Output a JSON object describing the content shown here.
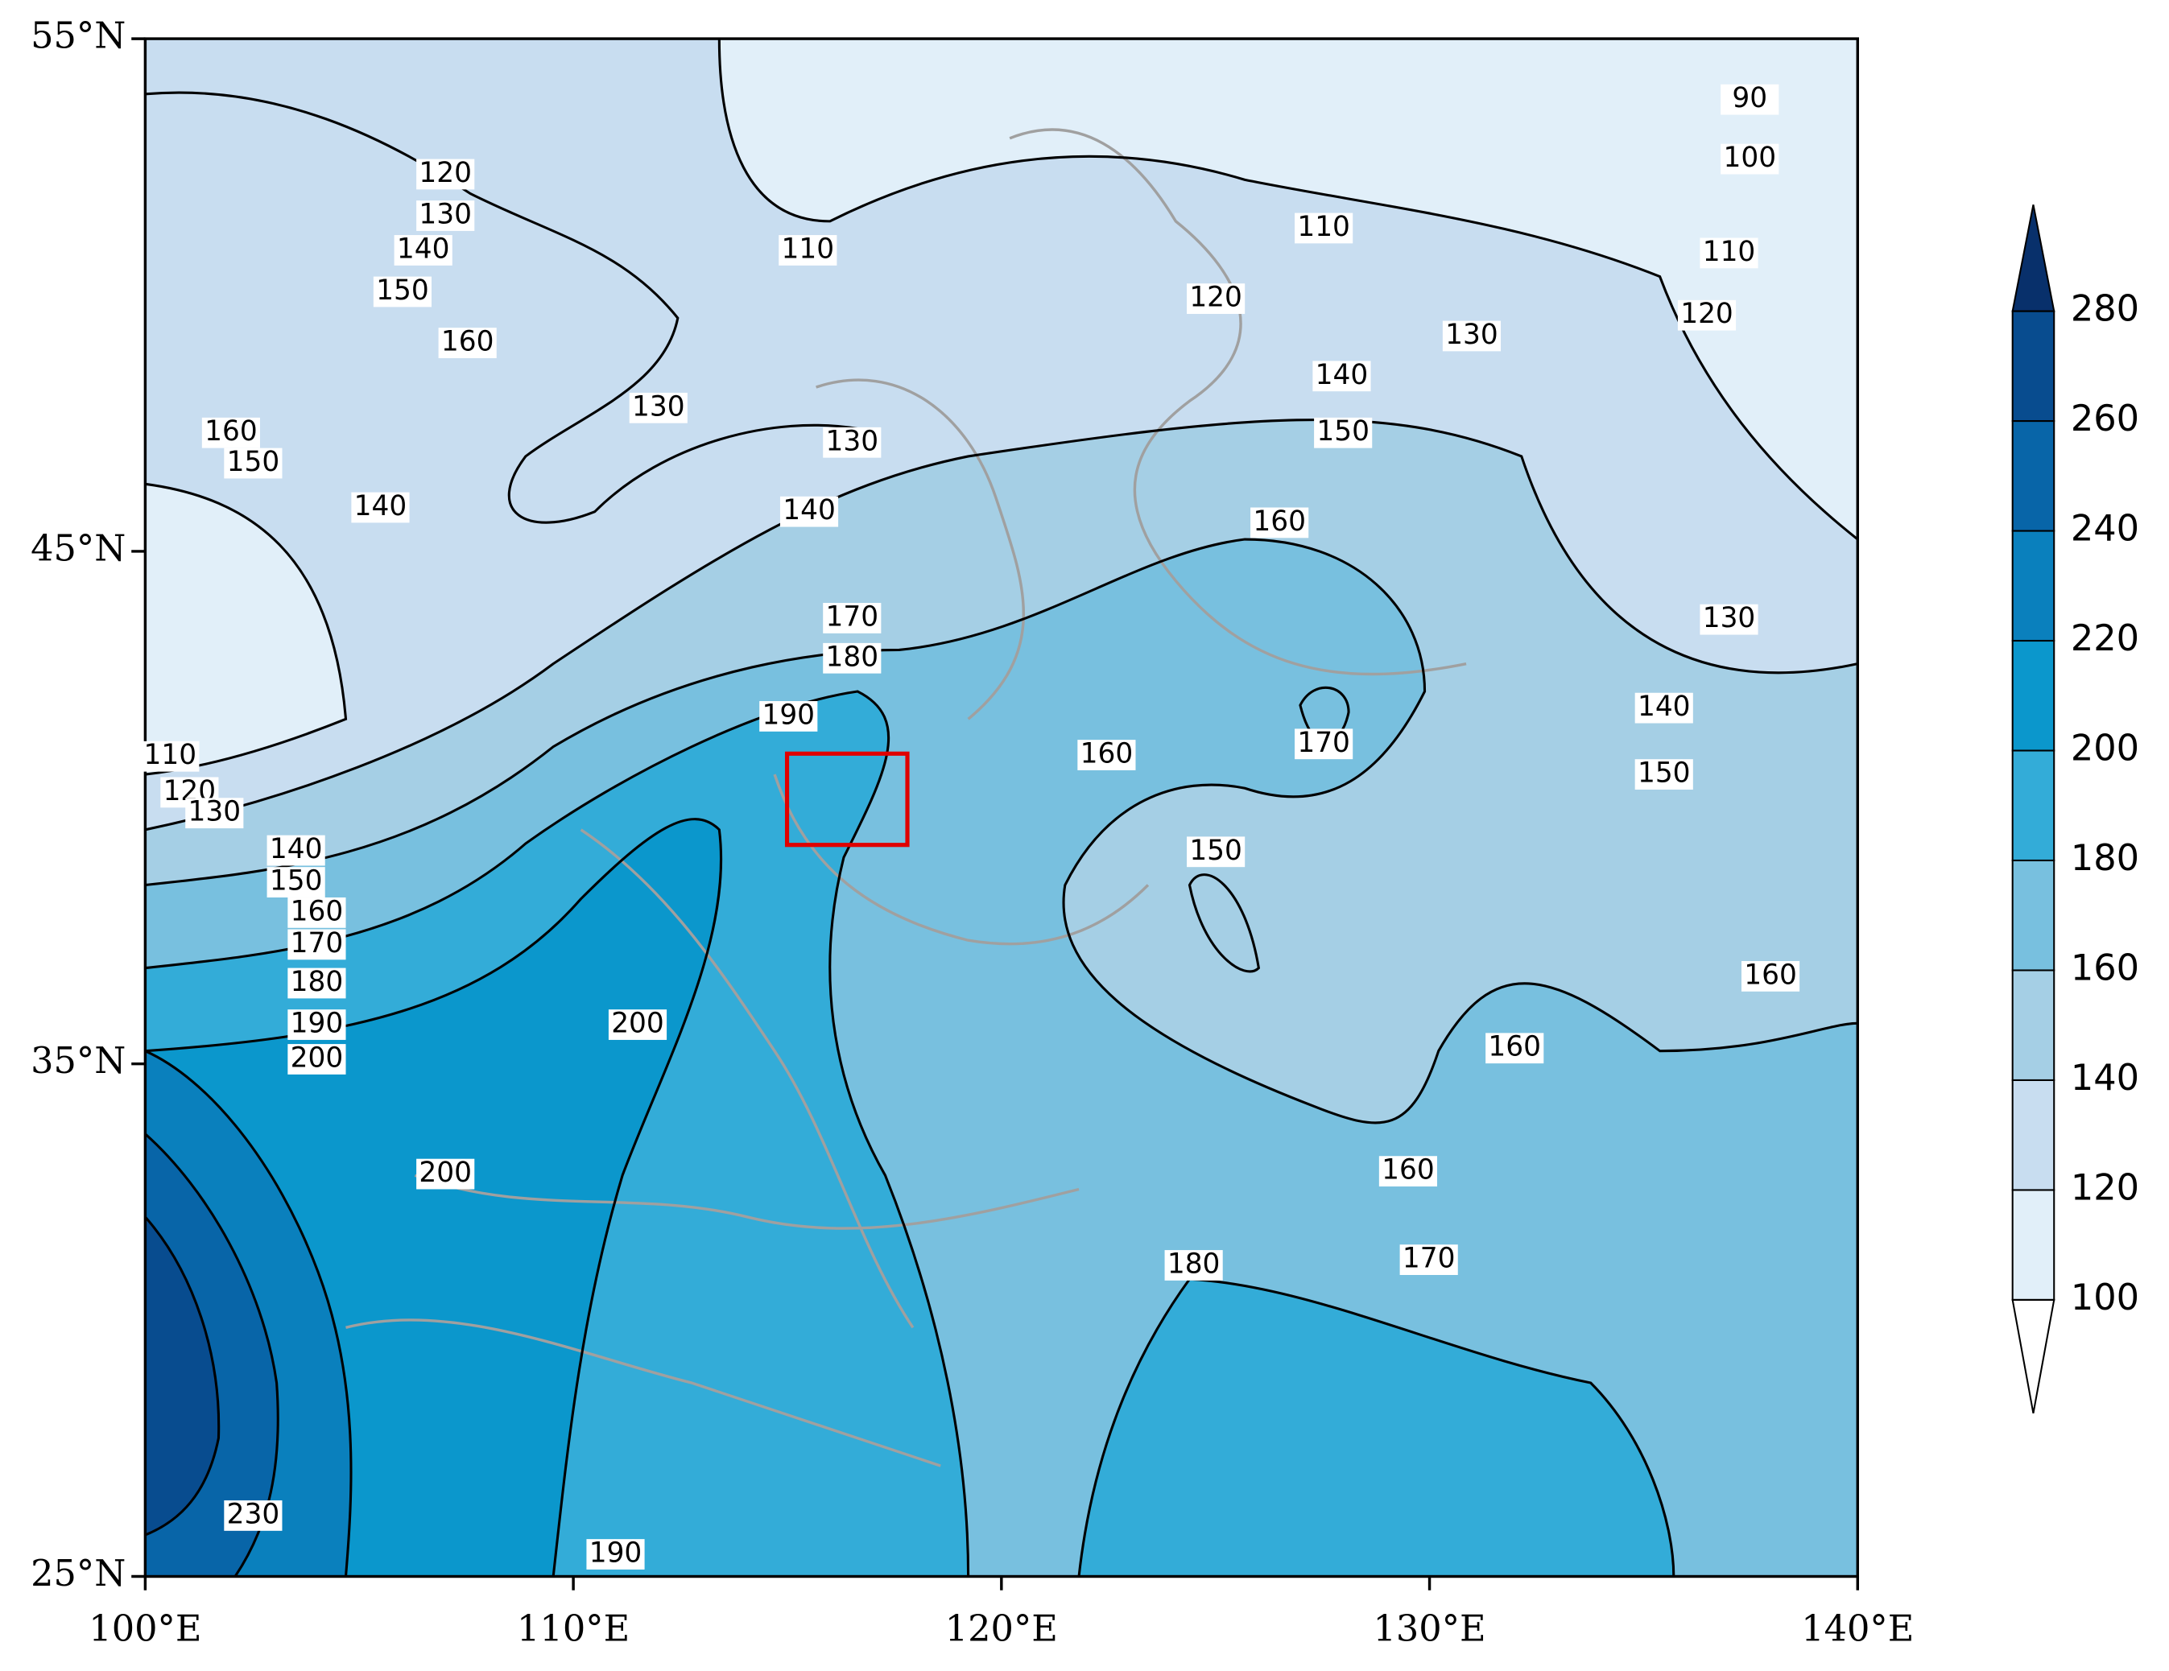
{
  "map": {
    "xlim": [
      100,
      140
    ],
    "ylim": [
      25,
      55
    ],
    "xticks": [
      {
        "value": 100,
        "label": "100°E"
      },
      {
        "value": 110,
        "label": "110°E"
      },
      {
        "value": 120,
        "label": "120°E"
      },
      {
        "value": 130,
        "label": "130°E"
      },
      {
        "value": 140,
        "label": "140°E"
      }
    ],
    "yticks": [
      {
        "value": 25,
        "label": "25°N"
      },
      {
        "value": 35,
        "label": "35°N"
      },
      {
        "value": 45,
        "label": "45°N"
      },
      {
        "value": 55,
        "label": "55°N"
      }
    ],
    "colorbar": {
      "levels": [
        100,
        120,
        140,
        160,
        180,
        200,
        220,
        240,
        260,
        280
      ],
      "colors": [
        "#e1eff9",
        "#c8ddf0",
        "#a5cfe5",
        "#78c0df",
        "#33acd8",
        "#0b97cc",
        "#0a80bd",
        "#0865a8",
        "#084c8f"
      ],
      "under_color": "#ffffff",
      "over_color": "#08306b"
    },
    "contour_labels": [
      120,
      130,
      140,
      150,
      160,
      110,
      110,
      120,
      130,
      110,
      100,
      90,
      120,
      140,
      150,
      130,
      130,
      160,
      150,
      140,
      140,
      160,
      130,
      140,
      150,
      170,
      180,
      190,
      160,
      170,
      150,
      140,
      150,
      160,
      170,
      180,
      190,
      200,
      200,
      200,
      160,
      160,
      160,
      170,
      180,
      230,
      190,
      110,
      120,
      130
    ]
  }
}
